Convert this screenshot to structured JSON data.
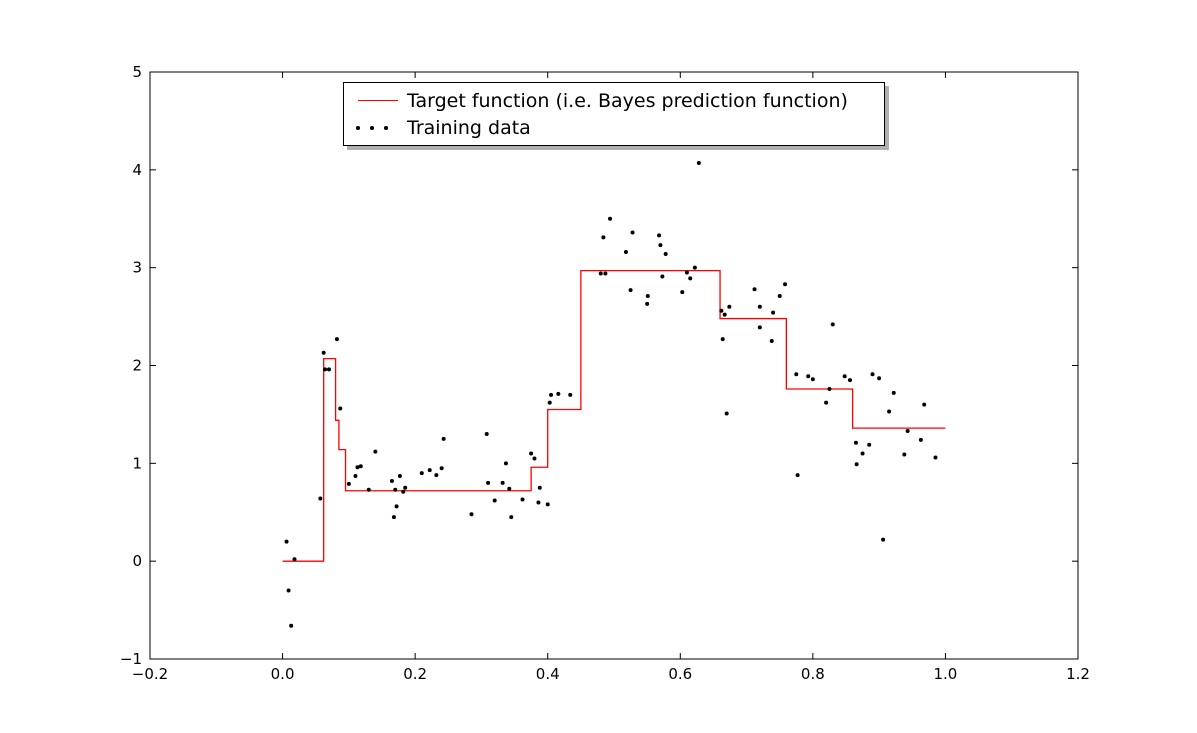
{
  "chart_data": {
    "type": "line",
    "title": "",
    "xlabel": "",
    "ylabel": "",
    "xlim": [
      -0.2,
      1.2
    ],
    "ylim": [
      -1,
      5
    ],
    "x_ticks": [
      "−0.2",
      "0.0",
      "0.2",
      "0.4",
      "0.6",
      "0.8",
      "1.0",
      "1.2"
    ],
    "y_ticks": [
      "−1",
      "0",
      "1",
      "2",
      "3",
      "4",
      "5"
    ],
    "legend_position": "top-center",
    "series": [
      {
        "name": "Target function (i.e. Bayes prediction function)",
        "kind": "step-line",
        "color": "#ff0000",
        "points": [
          [
            0.0,
            0.0
          ],
          [
            0.062,
            0.0
          ],
          [
            0.062,
            2.07
          ],
          [
            0.08,
            2.07
          ],
          [
            0.08,
            1.44
          ],
          [
            0.085,
            1.44
          ],
          [
            0.085,
            1.14
          ],
          [
            0.095,
            1.14
          ],
          [
            0.095,
            0.72
          ],
          [
            0.375,
            0.72
          ],
          [
            0.375,
            0.96
          ],
          [
            0.4,
            0.96
          ],
          [
            0.4,
            1.55
          ],
          [
            0.45,
            1.55
          ],
          [
            0.45,
            2.97
          ],
          [
            0.66,
            2.97
          ],
          [
            0.66,
            2.48
          ],
          [
            0.76,
            2.48
          ],
          [
            0.76,
            1.76
          ],
          [
            0.86,
            1.76
          ],
          [
            0.86,
            1.36
          ],
          [
            1.0,
            1.36
          ]
        ]
      },
      {
        "name": "Training data",
        "kind": "scatter",
        "color": "#000000",
        "points": [
          [
            0.006,
            0.2
          ],
          [
            0.009,
            -0.3
          ],
          [
            0.013,
            -0.66
          ],
          [
            0.018,
            0.02
          ],
          [
            0.057,
            0.64
          ],
          [
            0.062,
            2.13
          ],
          [
            0.064,
            1.96
          ],
          [
            0.07,
            1.96
          ],
          [
            0.082,
            2.27
          ],
          [
            0.087,
            1.56
          ],
          [
            0.1,
            0.79
          ],
          [
            0.11,
            0.87
          ],
          [
            0.113,
            0.96
          ],
          [
            0.118,
            0.97
          ],
          [
            0.13,
            0.73
          ],
          [
            0.14,
            1.12
          ],
          [
            0.165,
            0.82
          ],
          [
            0.168,
            0.45
          ],
          [
            0.17,
            0.73
          ],
          [
            0.172,
            0.56
          ],
          [
            0.177,
            0.87
          ],
          [
            0.182,
            0.71
          ],
          [
            0.185,
            0.75
          ],
          [
            0.21,
            0.9
          ],
          [
            0.222,
            0.93
          ],
          [
            0.232,
            0.88
          ],
          [
            0.24,
            0.95
          ],
          [
            0.243,
            1.25
          ],
          [
            0.285,
            0.48
          ],
          [
            0.308,
            1.3
          ],
          [
            0.31,
            0.8
          ],
          [
            0.32,
            0.62
          ],
          [
            0.332,
            0.8
          ],
          [
            0.337,
            1.0
          ],
          [
            0.342,
            0.74
          ],
          [
            0.345,
            0.45
          ],
          [
            0.362,
            0.63
          ],
          [
            0.375,
            1.1
          ],
          [
            0.38,
            1.05
          ],
          [
            0.386,
            0.6
          ],
          [
            0.388,
            0.75
          ],
          [
            0.4,
            0.58
          ],
          [
            0.403,
            1.62
          ],
          [
            0.405,
            1.7
          ],
          [
            0.416,
            1.71
          ],
          [
            0.434,
            1.7
          ],
          [
            0.48,
            2.94
          ],
          [
            0.484,
            3.31
          ],
          [
            0.487,
            2.94
          ],
          [
            0.494,
            3.5
          ],
          [
            0.518,
            3.16
          ],
          [
            0.525,
            2.77
          ],
          [
            0.528,
            3.36
          ],
          [
            0.55,
            2.63
          ],
          [
            0.551,
            2.71
          ],
          [
            0.568,
            3.33
          ],
          [
            0.57,
            3.23
          ],
          [
            0.573,
            2.91
          ],
          [
            0.578,
            3.14
          ],
          [
            0.603,
            2.75
          ],
          [
            0.61,
            2.95
          ],
          [
            0.615,
            2.89
          ],
          [
            0.622,
            3.0
          ],
          [
            0.628,
            4.07
          ],
          [
            0.662,
            2.56
          ],
          [
            0.664,
            2.27
          ],
          [
            0.667,
            2.52
          ],
          [
            0.67,
            1.51
          ],
          [
            0.674,
            2.6
          ],
          [
            0.712,
            2.78
          ],
          [
            0.72,
            2.6
          ],
          [
            0.72,
            2.39
          ],
          [
            0.738,
            2.25
          ],
          [
            0.74,
            2.54
          ],
          [
            0.75,
            2.71
          ],
          [
            0.758,
            2.83
          ],
          [
            0.775,
            1.91
          ],
          [
            0.777,
            0.88
          ],
          [
            0.793,
            1.89
          ],
          [
            0.8,
            1.86
          ],
          [
            0.82,
            1.62
          ],
          [
            0.825,
            1.76
          ],
          [
            0.83,
            2.42
          ],
          [
            0.848,
            1.89
          ],
          [
            0.856,
            1.85
          ],
          [
            0.865,
            1.21
          ],
          [
            0.866,
            0.99
          ],
          [
            0.875,
            1.1
          ],
          [
            0.885,
            1.19
          ],
          [
            0.89,
            1.91
          ],
          [
            0.9,
            1.87
          ],
          [
            0.906,
            0.22
          ],
          [
            0.915,
            1.53
          ],
          [
            0.922,
            1.72
          ],
          [
            0.938,
            1.09
          ],
          [
            0.943,
            1.33
          ],
          [
            0.963,
            1.24
          ],
          [
            0.968,
            1.6
          ],
          [
            0.985,
            1.06
          ]
        ]
      }
    ]
  }
}
